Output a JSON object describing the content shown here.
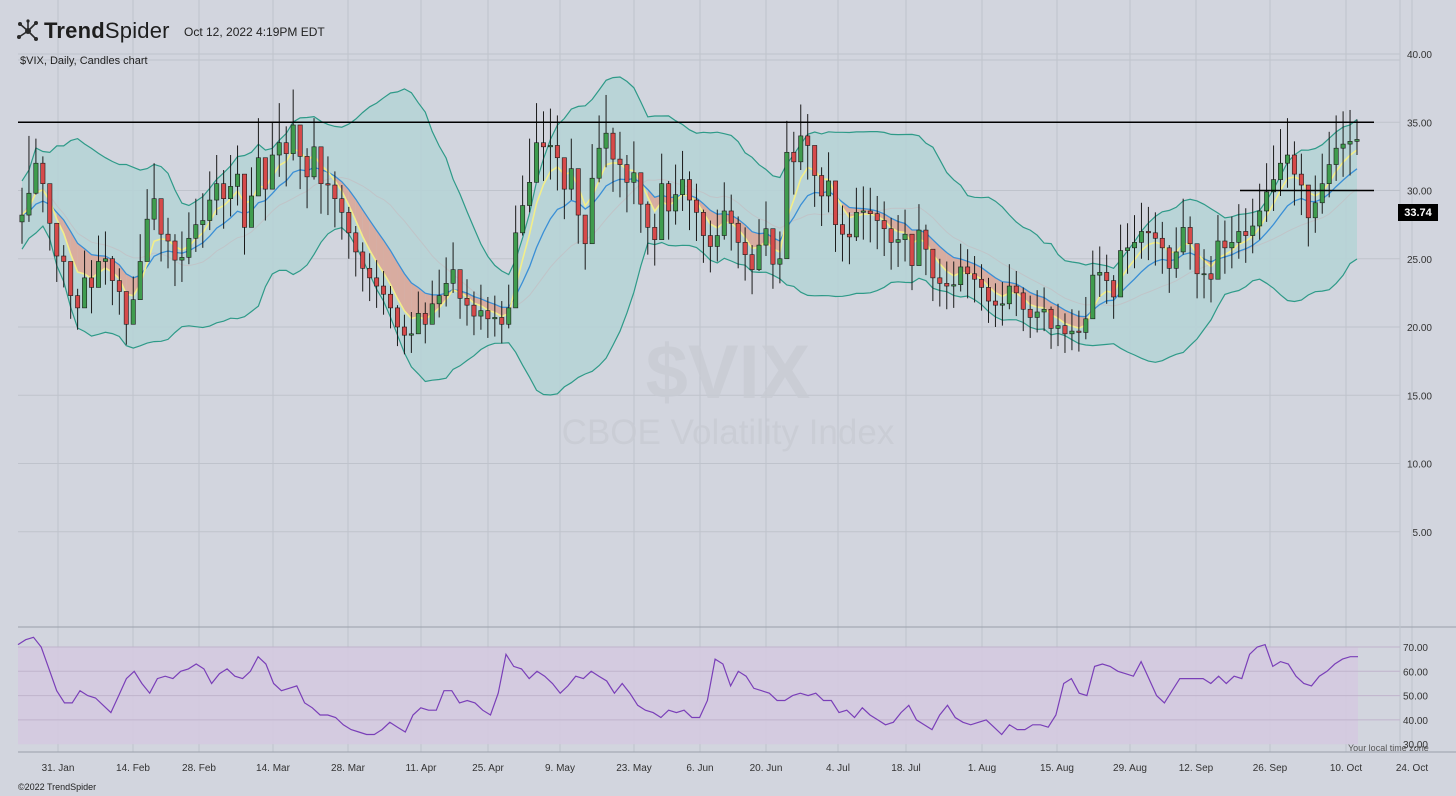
{
  "brand": {
    "name_bold": "Trend",
    "name_light": "Spider",
    "logo_icon": "network-nodes-icon"
  },
  "timestamp": "Oct 12, 2022 4:19PM EDT",
  "symbol_line": "$VIX, Daily, Candles chart",
  "watermark": {
    "symbol": "$VIX",
    "name": "CBOE Volatility Index"
  },
  "last_price": "33.74",
  "copyright": "©2022 TrendSpider",
  "timezone_note": "Your local time zone",
  "colors": {
    "bg": "#d2d5de",
    "up": "#3f9c4e",
    "down": "#d64a4a",
    "band_fill": "#b5d3d6",
    "band_line": "#2e9a88",
    "sma": "#f2ee8a",
    "ema": "#3a8fd6",
    "mid": "#c0c4c8",
    "rsi": "#7a3fb8",
    "rsi_fill": "#d5c9e0",
    "cloud": "#dca79a"
  },
  "chart_data": [
    {
      "type": "candlestick",
      "title": "$VIX, Daily, Candles chart",
      "ylim": [
        0,
        45
      ],
      "y_ticks": [
        "40.00",
        "35.00",
        "30.00",
        "25.00",
        "20.00",
        "15.00",
        "10.00",
        "5.00"
      ],
      "x_ticks": [
        "31. Jan",
        "14. Feb",
        "28. Feb",
        "14. Mar",
        "28. Mar",
        "11. Apr",
        "25. Apr",
        "9. May",
        "23. May",
        "6. Jun",
        "20. Jun",
        "4. Jul",
        "18. Jul",
        "1. Aug",
        "15. Aug",
        "29. Aug",
        "12. Sep",
        "26. Sep",
        "10. Oct",
        "24. Oct"
      ],
      "closes": [
        28.2,
        29.8,
        32.0,
        30.5,
        27.6,
        25.2,
        24.8,
        22.3,
        21.4,
        23.6,
        22.9,
        24.8,
        25.0,
        23.4,
        22.6,
        20.2,
        22.0,
        24.8,
        27.9,
        29.4,
        26.8,
        26.3,
        24.9,
        25.1,
        26.5,
        27.5,
        27.8,
        29.3,
        30.5,
        29.4,
        30.3,
        31.2,
        27.3,
        29.6,
        32.4,
        30.1,
        32.6,
        33.5,
        32.7,
        34.8,
        32.5,
        31.0,
        33.2,
        30.5,
        30.4,
        29.4,
        28.4,
        26.9,
        25.5,
        24.3,
        23.6,
        23.0,
        22.4,
        21.4,
        20.0,
        19.4,
        19.5,
        21.0,
        20.2,
        21.7,
        22.3,
        23.2,
        24.2,
        22.1,
        21.6,
        20.8,
        21.2,
        20.6,
        20.7,
        20.2,
        21.4,
        26.9,
        28.9,
        30.6,
        33.5,
        33.2,
        33.3,
        32.4,
        30.1,
        31.6,
        28.2,
        26.1,
        30.9,
        33.1,
        34.2,
        32.3,
        31.9,
        30.6,
        31.3,
        29.0,
        27.3,
        26.4,
        30.5,
        28.5,
        29.7,
        30.8,
        29.3,
        28.4,
        26.7,
        25.9,
        26.7,
        28.5,
        27.6,
        26.2,
        25.3,
        24.2,
        26.0,
        27.2,
        24.6,
        25.0,
        32.8,
        32.1,
        34.0,
        33.3,
        31.1,
        29.6,
        30.7,
        27.5,
        26.8,
        26.6,
        28.4,
        28.5,
        28.3,
        27.8,
        27.2,
        26.2,
        26.4,
        26.8,
        24.5,
        27.1,
        25.7,
        23.6,
        23.2,
        23.0,
        23.1,
        24.4,
        23.9,
        23.5,
        22.9,
        21.9,
        21.6,
        21.7,
        23.0,
        22.5,
        21.3,
        20.7,
        21.1,
        21.3,
        19.9,
        20.1,
        19.5,
        19.7,
        19.6,
        20.6,
        23.8,
        24.0,
        23.4,
        22.2,
        25.6,
        25.8,
        26.2,
        27.0,
        26.9,
        26.5,
        25.8,
        24.3,
        25.5,
        27.3,
        26.1,
        23.9,
        23.9,
        23.5,
        26.3,
        25.8,
        26.2,
        27.0,
        26.7,
        27.4,
        28.5,
        29.9,
        30.8,
        32.0,
        32.6,
        31.2,
        30.4,
        28.0,
        29.1,
        30.5,
        31.9,
        33.1,
        33.4,
        33.6,
        33.74
      ],
      "highs": [
        30.2,
        34.0,
        33.8,
        32.5,
        29.8,
        27.1,
        26.0,
        24.0,
        22.8,
        25.6,
        24.9,
        26.7,
        27.0,
        25.2,
        24.3,
        21.8,
        23.7,
        26.8,
        30.1,
        32.0,
        28.7,
        28.0,
        26.8,
        27.0,
        28.4,
        29.4,
        29.8,
        31.4,
        32.6,
        31.5,
        32.6,
        33.3,
        29.4,
        31.7,
        35.3,
        32.3,
        35.0,
        36.4,
        34.7,
        37.4,
        34.6,
        33.1,
        35.3,
        32.6,
        32.5,
        31.4,
        30.4,
        28.8,
        27.4,
        26.2,
        25.4,
        24.9,
        24.1,
        23.0,
        21.6,
        20.9,
        21.1,
        22.6,
        21.8,
        23.4,
        24.2,
        25.1,
        26.2,
        24.0,
        23.5,
        22.6,
        23.1,
        22.2,
        22.3,
        21.9,
        23.1,
        28.9,
        31.1,
        33.8,
        36.4,
        35.8,
        36.0,
        35.5,
        32.3,
        33.8,
        30.0,
        27.9,
        33.4,
        35.5,
        37.0,
        34.6,
        34.3,
        32.6,
        33.6,
        31.0,
        29.2,
        28.3,
        32.7,
        30.7,
        31.9,
        32.9,
        31.4,
        30.5,
        28.6,
        27.8,
        28.6,
        30.6,
        29.7,
        28.1,
        27.3,
        26.0,
        27.9,
        29.2,
        26.6,
        27.0,
        35.1,
        34.3,
        36.3,
        35.6,
        33.2,
        31.7,
        32.8,
        29.6,
        28.9,
        28.4,
        30.2,
        30.3,
        30.2,
        29.6,
        29.2,
        28.0,
        28.2,
        28.6,
        26.4,
        29.0,
        27.5,
        25.4,
        25.0,
        24.8,
        24.8,
        26.1,
        25.7,
        25.2,
        24.6,
        23.6,
        23.2,
        23.3,
        24.6,
        24.1,
        22.9,
        22.3,
        22.7,
        22.9,
        21.5,
        21.7,
        21.0,
        21.3,
        21.2,
        22.2,
        25.6,
        25.9,
        25.3,
        23.8,
        27.5,
        27.6,
        28.2,
        29.1,
        28.8,
        28.4,
        27.7,
        26.0,
        27.3,
        29.4,
        28.1,
        25.7,
        25.7,
        25.2,
        28.2,
        27.8,
        28.1,
        29.0,
        28.7,
        29.4,
        30.5,
        32.0,
        33.3,
        34.5,
        35.3,
        33.6,
        32.7,
        30.2,
        31.1,
        32.7,
        34.3,
        35.5,
        35.8,
        35.9,
        35.2
      ],
      "lows": [
        26.1,
        27.7,
        29.7,
        28.4,
        25.6,
        23.3,
        22.9,
        20.6,
        19.8,
        21.8,
        21.0,
        22.9,
        23.1,
        21.6,
        20.9,
        18.7,
        20.4,
        22.9,
        25.8,
        27.1,
        24.8,
        24.3,
        23.0,
        23.3,
        24.6,
        25.5,
        25.8,
        27.1,
        28.2,
        27.2,
        28.1,
        28.9,
        25.3,
        27.4,
        29.9,
        27.8,
        30.1,
        31.0,
        30.3,
        32.2,
        30.1,
        28.7,
        30.8,
        28.3,
        28.2,
        27.3,
        26.4,
        25.0,
        23.7,
        22.6,
        21.9,
        21.4,
        20.9,
        19.9,
        18.6,
        18.0,
        18.1,
        19.5,
        18.8,
        20.2,
        20.7,
        21.5,
        22.5,
        20.6,
        20.1,
        19.4,
        19.8,
        19.2,
        19.3,
        18.8,
        19.9,
        24.9,
        26.7,
        28.4,
        31.0,
        30.7,
        30.8,
        30.0,
        27.9,
        29.3,
        26.1,
        24.2,
        28.6,
        30.6,
        31.7,
        29.9,
        29.5,
        28.4,
        29.0,
        26.9,
        25.3,
        24.5,
        28.3,
        26.4,
        27.5,
        28.5,
        27.1,
        26.3,
        24.7,
        24.0,
        24.8,
        26.4,
        25.6,
        24.3,
        23.4,
        22.4,
        24.1,
        25.2,
        22.8,
        23.2,
        30.4,
        29.7,
        31.5,
        30.8,
        28.8,
        27.4,
        28.4,
        25.5,
        24.8,
        24.6,
        26.3,
        26.4,
        26.2,
        25.7,
        25.2,
        24.2,
        24.4,
        24.8,
        22.7,
        25.1,
        23.8,
        21.9,
        21.5,
        21.3,
        21.4,
        22.6,
        22.1,
        21.8,
        21.2,
        20.3,
        20.0,
        20.1,
        21.3,
        20.8,
        19.7,
        19.2,
        19.6,
        19.7,
        18.4,
        18.6,
        18.1,
        18.3,
        18.2,
        19.1,
        22.0,
        22.2,
        21.7,
        20.6,
        23.7,
        23.9,
        24.3,
        25.0,
        24.9,
        24.5,
        23.9,
        22.5,
        23.6,
        25.3,
        24.2,
        22.1,
        22.1,
        21.8,
        24.4,
        23.9,
        24.3,
        25.0,
        24.7,
        25.4,
        26.4,
        27.7,
        28.5,
        29.6,
        30.2,
        28.9,
        28.2,
        25.9,
        26.9,
        28.3,
        29.5,
        30.7,
        31.0,
        31.1,
        32.6
      ],
      "horizontal_levels": [
        35.0,
        30.0
      ],
      "indicators": [
        "Bollinger Bands",
        "SMA",
        "EMA",
        "EMA cloud"
      ]
    },
    {
      "type": "line",
      "title": "RSI",
      "ylim": [
        28,
        75
      ],
      "y_ticks": [
        "70.00",
        "60.00",
        "50.00",
        "40.00",
        "30.00"
      ],
      "values": [
        71,
        73,
        74,
        70,
        61,
        52,
        47,
        47,
        52,
        50,
        49,
        46,
        43,
        50,
        57,
        60,
        55,
        51,
        57,
        58,
        57,
        60,
        61,
        63,
        61,
        55,
        59,
        61,
        58,
        57,
        60,
        66,
        63,
        55,
        52,
        53,
        54,
        47,
        45,
        42,
        42,
        41,
        38,
        36,
        35,
        34,
        34,
        36,
        39,
        37,
        35,
        42,
        45,
        44,
        44,
        52,
        52,
        47,
        48,
        47,
        44,
        42,
        51,
        67,
        62,
        61,
        57,
        60,
        58,
        55,
        51,
        54,
        58,
        57,
        60,
        58,
        56,
        51,
        55,
        51,
        46,
        44,
        43,
        41,
        44,
        43,
        44,
        41,
        41,
        48,
        65,
        63,
        54,
        60,
        58,
        53,
        52,
        51,
        48,
        48,
        50,
        51,
        50,
        51,
        48,
        48,
        43,
        44,
        41,
        45,
        42,
        40,
        38,
        39,
        43,
        46,
        40,
        38,
        36,
        42,
        46,
        41,
        39,
        38,
        39,
        40,
        37,
        34,
        38,
        36,
        36,
        38,
        38,
        37,
        42,
        55,
        57,
        51,
        50,
        62,
        63,
        62,
        60,
        59,
        58,
        64,
        57,
        50,
        47,
        52,
        57,
        57,
        57,
        57,
        55,
        58,
        55,
        58,
        57,
        67,
        70,
        71,
        62,
        64,
        63,
        58,
        55,
        54,
        58,
        60,
        63,
        65,
        66,
        66
      ]
    }
  ]
}
